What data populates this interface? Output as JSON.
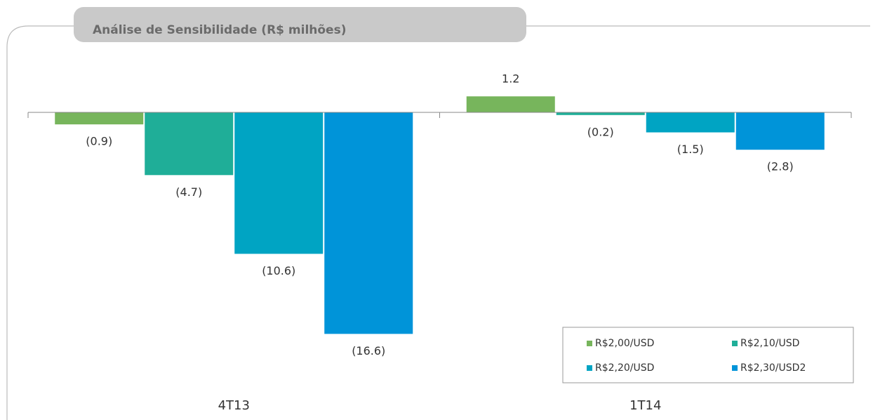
{
  "chart_data": {
    "type": "bar",
    "title": "Análise de Sensibilidade (R$ milhões)",
    "categories": [
      "4T13",
      "1T14"
    ],
    "series": [
      {
        "name": "R$2,00/USD",
        "color": "#77b55c",
        "values": [
          -0.9,
          1.2
        ],
        "value_labels": [
          "(0.9)",
          "1.2"
        ]
      },
      {
        "name": "R$2,10/USD",
        "color": "#1fae98",
        "values": [
          -4.7,
          -0.2
        ],
        "value_labels": [
          "(4.7)",
          "(0.2)"
        ]
      },
      {
        "name": "R$2,20/USD",
        "color": "#00a4c3",
        "values": [
          -10.6,
          -1.5
        ],
        "value_labels": [
          "(10.6)",
          "(1.5)"
        ]
      },
      {
        "name": "R$2,30/USD2",
        "color": "#0094d9",
        "values": [
          -16.6,
          -2.8
        ],
        "value_labels": [
          "(16.6)",
          "(2.8)"
        ]
      }
    ],
    "ylim": [
      -18,
      2
    ]
  }
}
